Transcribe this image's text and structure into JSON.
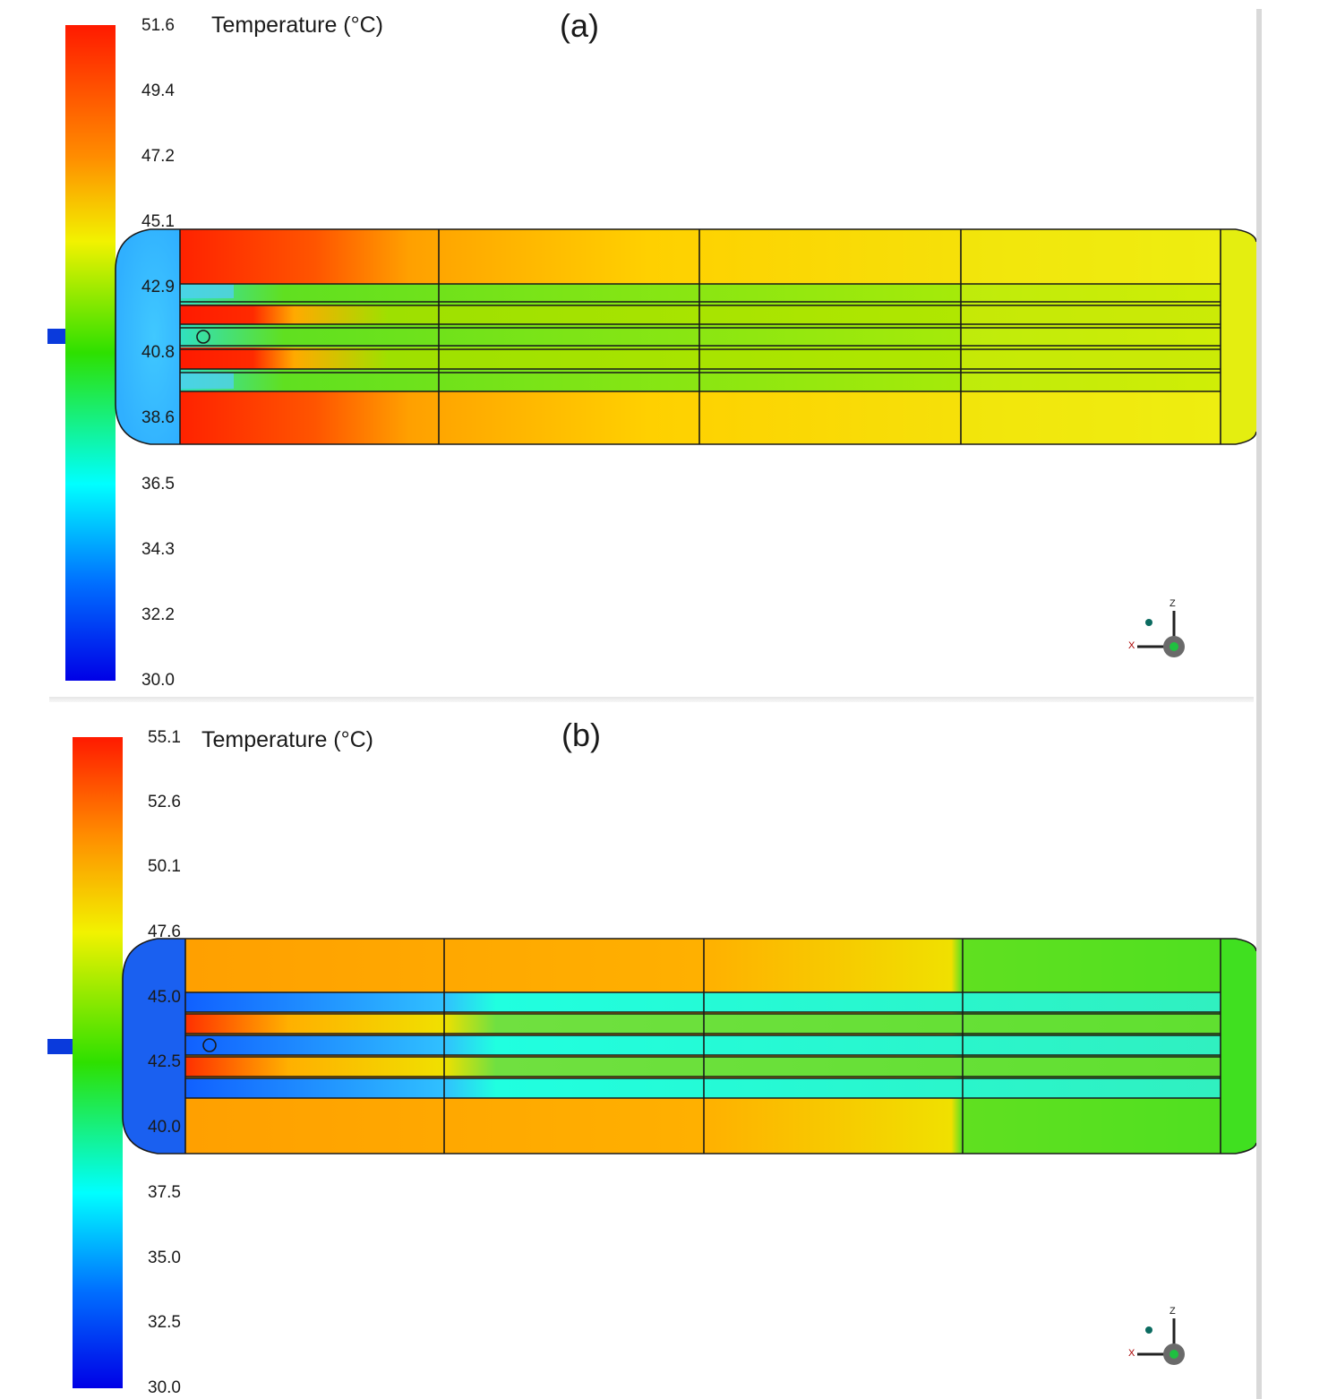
{
  "panels": [
    {
      "id": "a",
      "tag": "(a)",
      "legend_title": "Temperature (°C)",
      "ticks": [
        "51.6",
        "49.4",
        "47.2",
        "45.1",
        "42.9",
        "40.8",
        "38.6",
        "36.5",
        "34.3",
        "32.2",
        "30.0"
      ]
    },
    {
      "id": "b",
      "tag": "(b)",
      "legend_title": "Temperature (°C)",
      "ticks": [
        "55.1",
        "52.6",
        "50.1",
        "47.6",
        "45.0",
        "42.5",
        "40.0",
        "37.5",
        "35.0",
        "32.5",
        "30.0"
      ]
    }
  ],
  "colors": {
    "scale_top": "#ff1a00",
    "scale_orange": "#ff8c00",
    "scale_yellow": "#f2f200",
    "scale_green": "#2ee000",
    "scale_cyan": "#00ffff",
    "scale_blue": "#0000e6"
  },
  "axis_triad": {
    "x_label": "X",
    "z_label": "Z"
  }
}
